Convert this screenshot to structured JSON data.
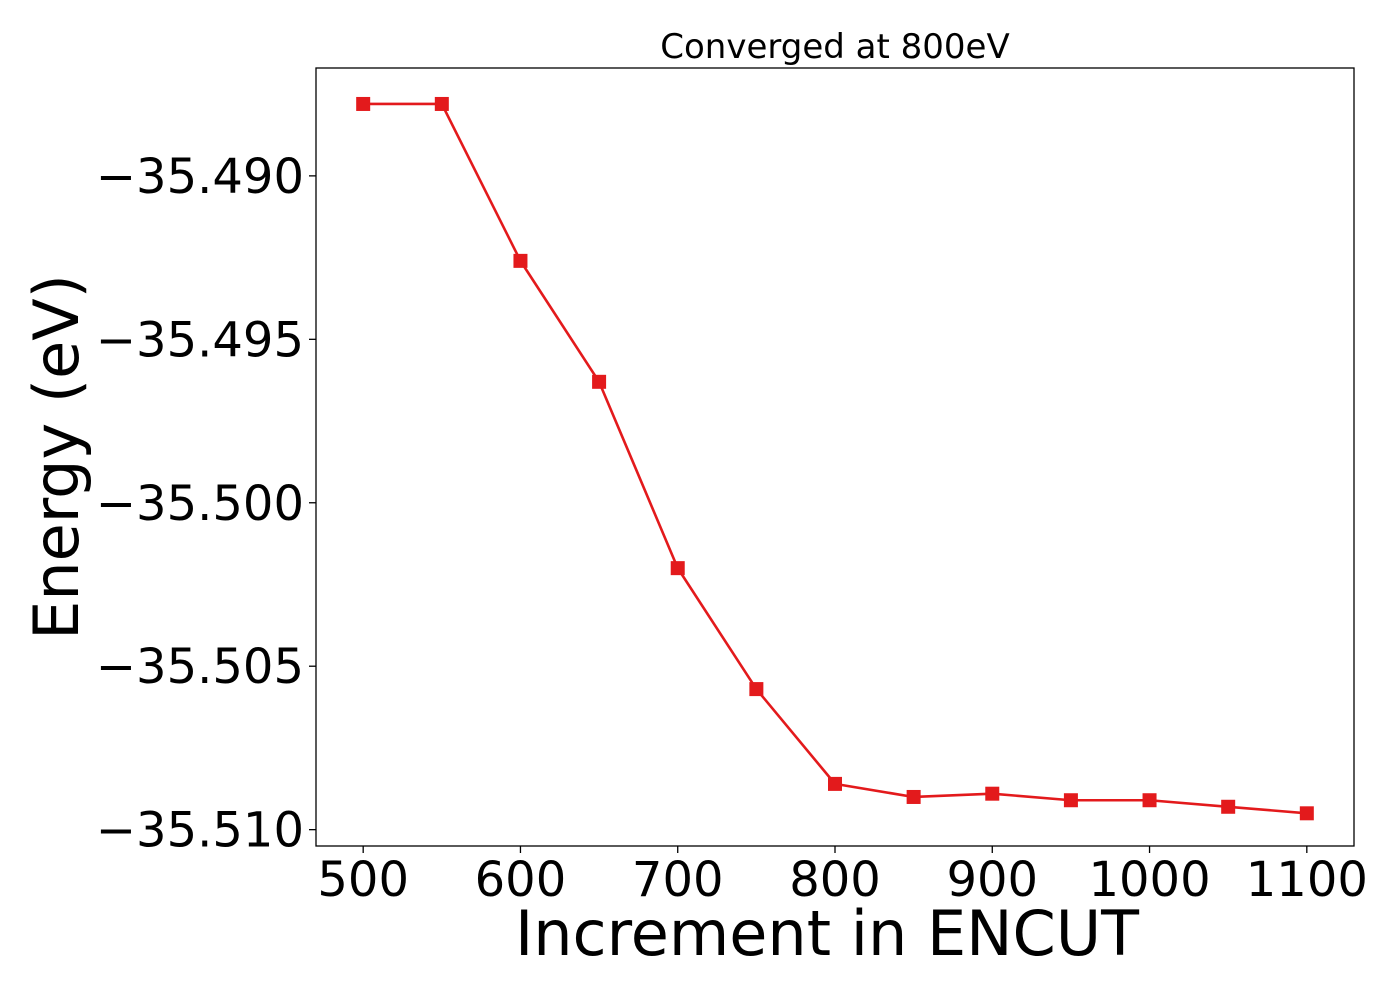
{
  "chart_data": {
    "type": "line",
    "title": "Converged at 800eV",
    "xlabel": "Increment in ENCUT",
    "ylabel": "Energy (eV)",
    "xlim": [
      470,
      1130
    ],
    "ylim": [
      -35.5105,
      -35.4867
    ],
    "x_ticks": [
      500,
      600,
      700,
      800,
      900,
      1000,
      1100
    ],
    "x_tick_labels": [
      "500",
      "600",
      "700",
      "800",
      "900",
      "1000",
      "1100"
    ],
    "y_ticks": [
      -35.49,
      -35.495,
      -35.5,
      -35.505,
      -35.51
    ],
    "y_tick_labels": [
      "−35.490",
      "−35.495",
      "−35.500",
      "−35.505",
      "−35.510"
    ],
    "grid": false,
    "series": [
      {
        "color": "#e31a1c",
        "marker": "square",
        "x": [
          500,
          550,
          600,
          650,
          700,
          750,
          800,
          850,
          900,
          950,
          1000,
          1050,
          1100
        ],
        "y": [
          -35.4878,
          -35.4878,
          -35.4926,
          -35.4963,
          -35.502,
          -35.5057,
          -35.5086,
          -35.509,
          -35.5089,
          -35.5091,
          -35.5091,
          -35.5093,
          -35.5095
        ]
      }
    ]
  }
}
